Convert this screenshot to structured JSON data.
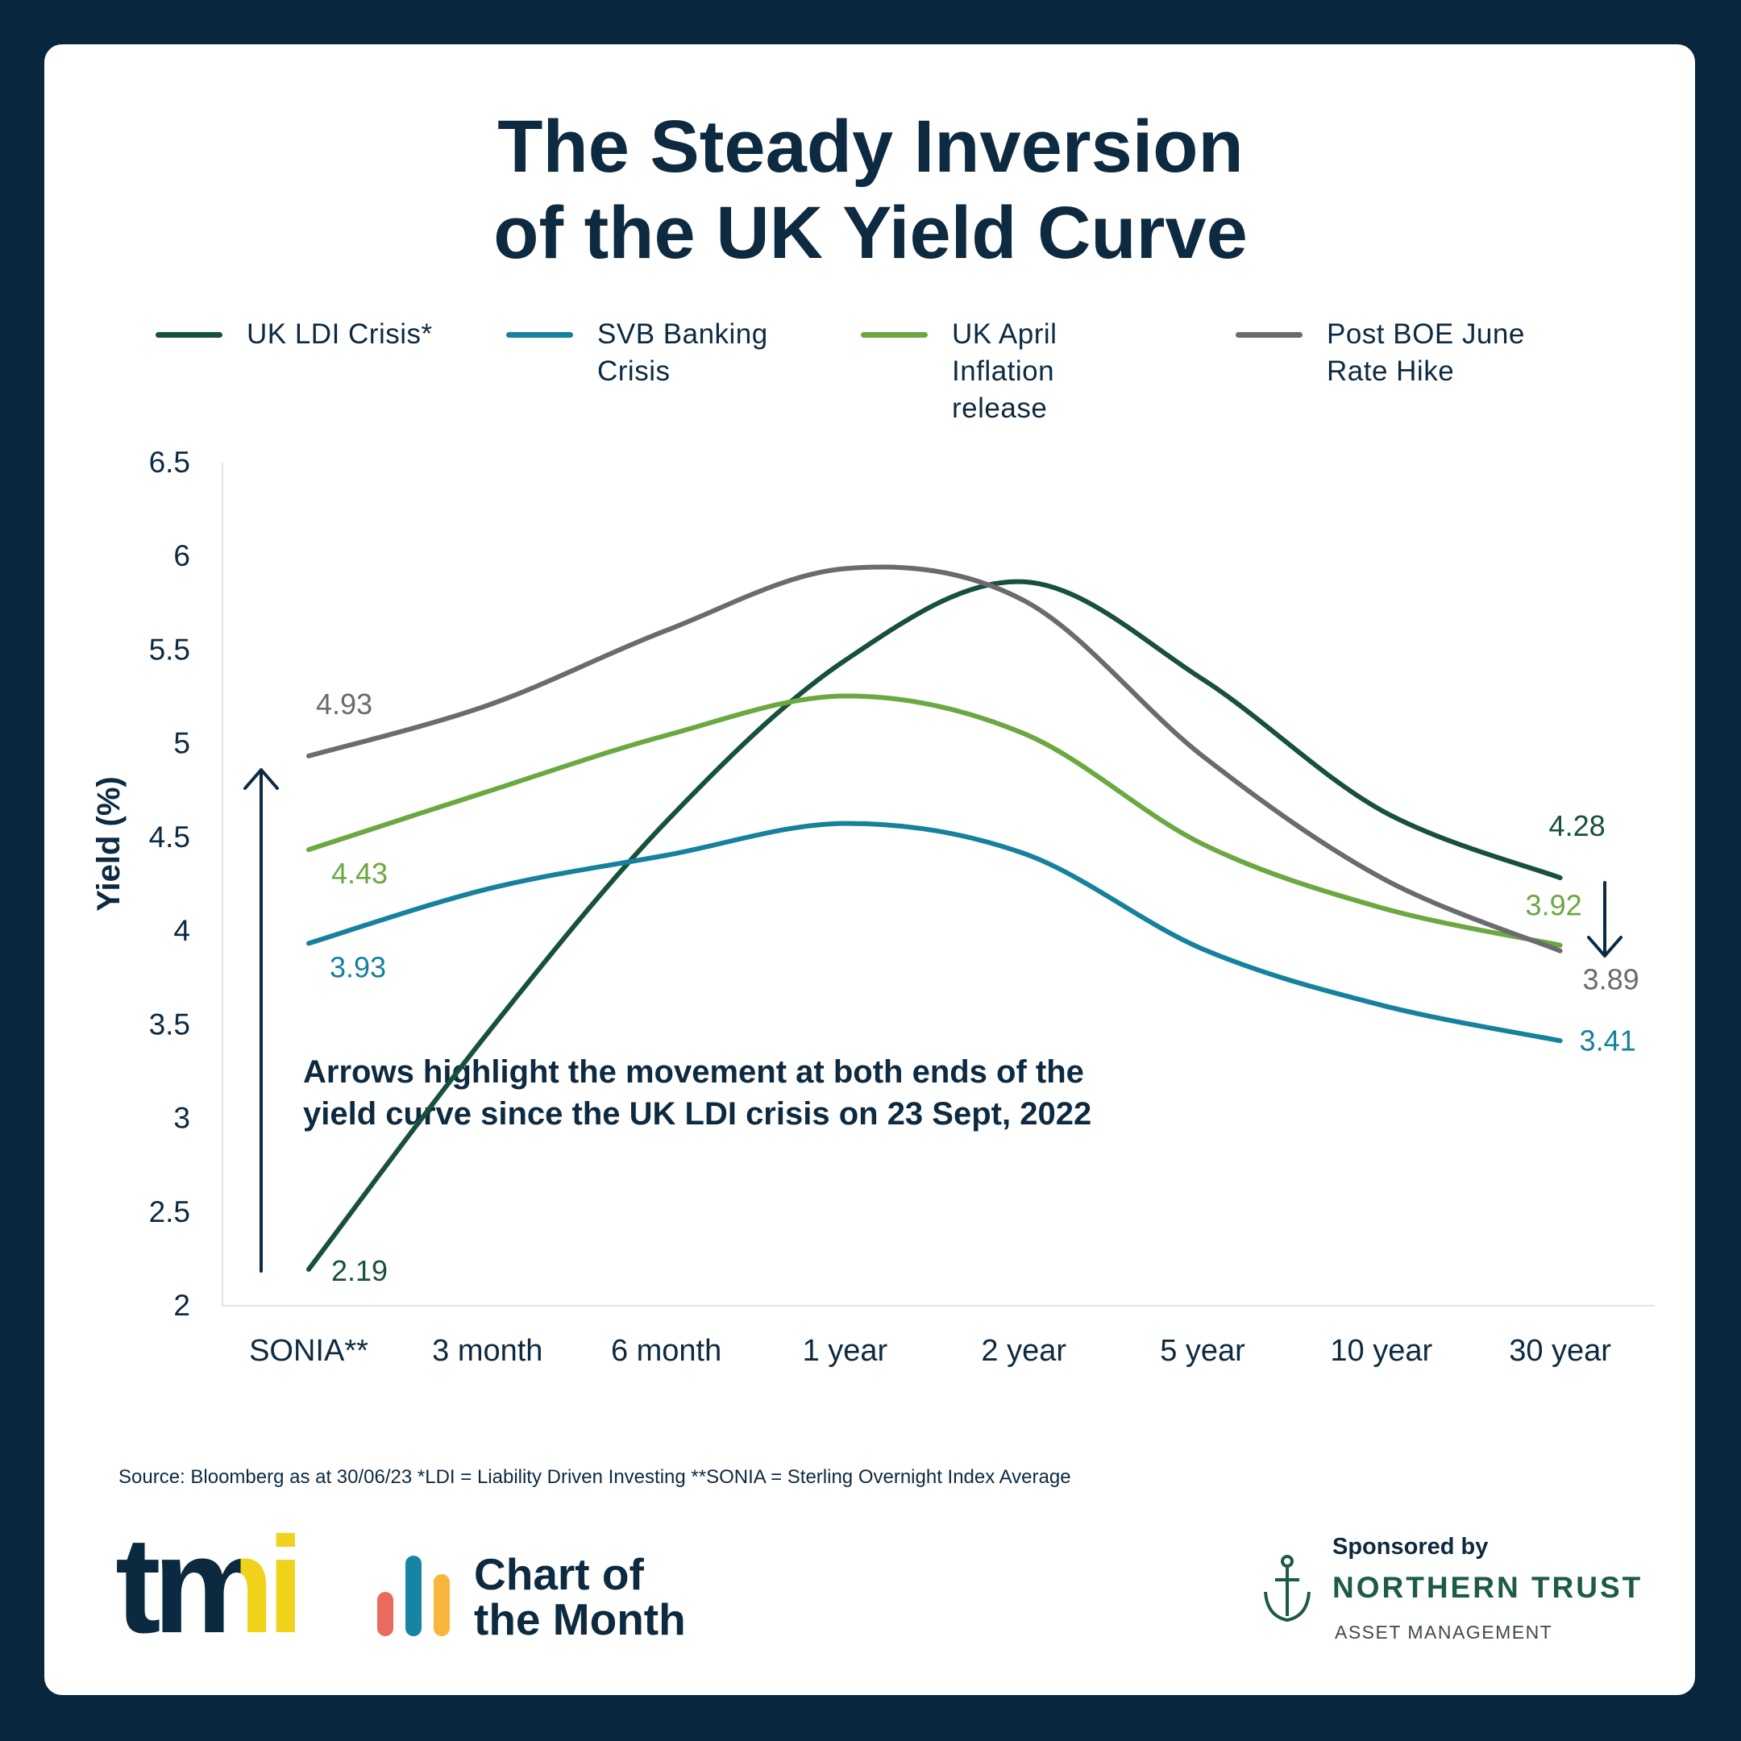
{
  "chart_data": {
    "type": "line",
    "title": [
      "The Steady Inversion",
      "of the UK Yield Curve"
    ],
    "y_label": "Yield (%)",
    "categories": [
      "SONIA**",
      "3 month",
      "6 month",
      "1 year",
      "2 year",
      "5 year",
      "10 year",
      "30 year"
    ],
    "series": [
      {
        "name": "UK LDI Crisis*",
        "color": "#17513d",
        "values": [
          2.19,
          3.45,
          4.58,
          5.44,
          5.86,
          5.34,
          4.64,
          4.28
        ]
      },
      {
        "name": "SVB Banking Crisis",
        "color": "#16819d",
        "values": [
          3.93,
          4.22,
          4.4,
          4.57,
          4.41,
          3.9,
          3.6,
          3.41
        ]
      },
      {
        "name": "UK April Inflation release",
        "color": "#6ba841",
        "values": [
          4.43,
          4.74,
          5.04,
          5.25,
          5.05,
          4.46,
          4.12,
          3.92
        ]
      },
      {
        "name": "Post BOE June Rate Hike",
        "color": "#6b6a70",
        "values": [
          4.93,
          5.2,
          5.6,
          5.93,
          5.76,
          4.93,
          4.28,
          3.89
        ]
      }
    ],
    "ylim": [
      2,
      6.5
    ],
    "yticks": [
      2,
      2.5,
      3,
      3.5,
      4,
      4.5,
      5,
      5.5,
      6,
      6.5
    ],
    "grid": false,
    "annotation": [
      "Arrows highlight the movement at both ends of the",
      "yield curve since the UK LDI crisis on 23 Sept, 2022"
    ],
    "source": "Source: Bloomberg as at 30/06/23  *LDI = Liability Driven Investing  **SONIA = Sterling Overnight Index Average"
  },
  "branding": {
    "logo": "tmi",
    "series_name": [
      "Chart of",
      "the Month"
    ],
    "sponsor_label": "Sponsored by",
    "sponsor": "NORTHERN TRUST",
    "sponsor_sub": "ASSET MANAGEMENT"
  }
}
